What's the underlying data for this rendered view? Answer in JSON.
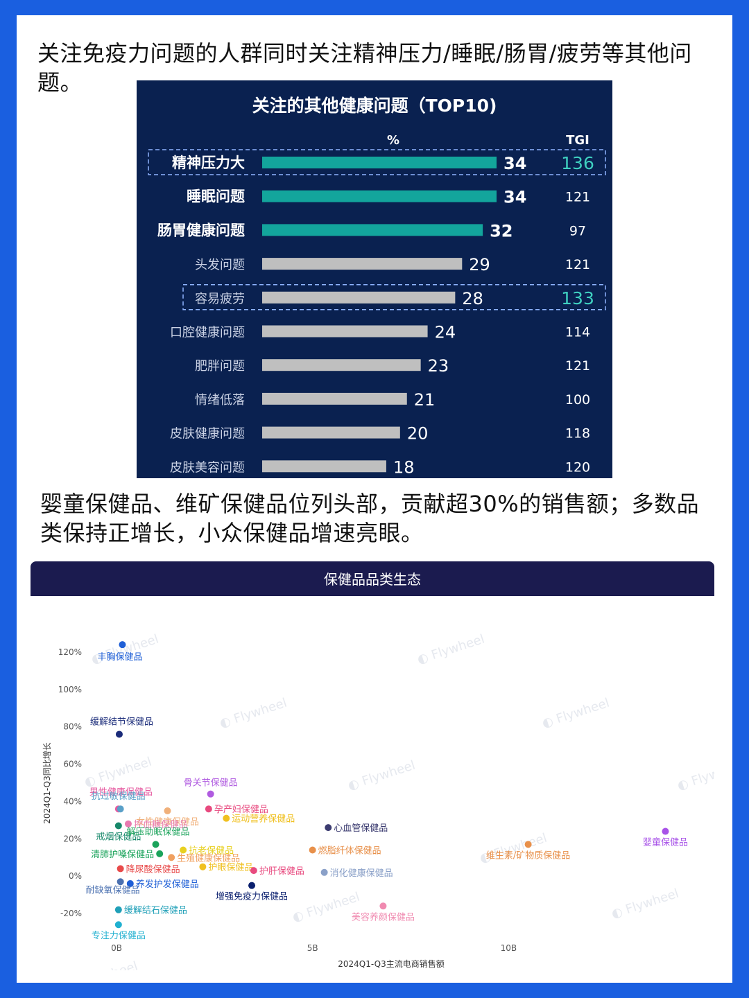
{
  "colors": {
    "frame": "#1a5fe0",
    "bar_panel_bg": "#0a2150",
    "bar_highlight": "#13a59c",
    "bar_normal": "#bfbfbf",
    "scatter_header": "#1b1b4f"
  },
  "intro_text": "关注免疫力问题的人群同时关注精神压力/睡眠/肠胃/疲劳等其他问题。",
  "intro_text_2": "婴童保健品、维矿保健品位列头部，贡献超30%的销售额；多数品类保持正增长，小众保健品增速亮眼。",
  "chart_data": [
    {
      "type": "bar",
      "orientation": "horizontal",
      "title": "关注的其他健康问题（TOP10)",
      "value_header": "%",
      "tgi_header": "TGI",
      "categories": [
        "精神压力大",
        "睡眠问题",
        "肠胃健康问题",
        "头发问题",
        "容易疲劳",
        "口腔健康问题",
        "肥胖问题",
        "情绪低落",
        "皮肤健康问题",
        "皮肤美容问题"
      ],
      "values": [
        34,
        34,
        32,
        29,
        28,
        24,
        23,
        21,
        20,
        18
      ],
      "tgi": [
        136,
        121,
        97,
        121,
        133,
        114,
        121,
        100,
        118,
        120
      ],
      "highlight_bars": [
        "精神压力大",
        "睡眠问题",
        "肠胃健康问题"
      ],
      "boxed_rows": [
        "精神压力大",
        "容易疲劳"
      ],
      "xlim": [
        0,
        34
      ]
    },
    {
      "type": "scatter",
      "title": "保健品品类生态",
      "xlabel": "2024Q1-Q3主流电商销售额",
      "ylabel": "2024Q1-Q3同比增长",
      "xlim": [
        0,
        15
      ],
      "ylim": [
        -0.3,
        1.3
      ],
      "x_ticks": [
        {
          "v": 0,
          "label": "0B"
        },
        {
          "v": 5,
          "label": "5B"
        },
        {
          "v": 10,
          "label": "10B"
        }
      ],
      "y_ticks": [
        {
          "v": 1.2,
          "label": "120%"
        },
        {
          "v": 1.0,
          "label": "100%"
        },
        {
          "v": 0.8,
          "label": "80%"
        },
        {
          "v": 0.6,
          "label": "60%"
        },
        {
          "v": 0.4,
          "label": "40%"
        },
        {
          "v": 0.2,
          "label": "20%"
        },
        {
          "v": 0.0,
          "label": "0%"
        },
        {
          "v": -0.2,
          "label": "-20%"
        }
      ],
      "watermark": "Flywheel",
      "points": [
        {
          "name": "丰胸保健品",
          "x": 0.15,
          "y": 1.24,
          "color": "#1f5fd6",
          "label_pos": "below-right"
        },
        {
          "name": "缓解结节保健品",
          "x": 0.07,
          "y": 0.76,
          "color": "#1b2c7a",
          "label_pos": "above-right"
        },
        {
          "name": "骨关节保健品",
          "x": 2.4,
          "y": 0.44,
          "color": "#b05be0",
          "label_pos": "above-center"
        },
        {
          "name": "男性健康保健品",
          "x": 0.05,
          "y": 0.36,
          "color": "#e65aa0",
          "label_pos": "above-left"
        },
        {
          "name": "抗过敏保健品",
          "x": 0.1,
          "y": 0.36,
          "color": "#5aa0c8",
          "label_pos": "above-right"
        },
        {
          "name": "孕产妇保健品",
          "x": 2.35,
          "y": 0.36,
          "color": "#e84a7f",
          "label_pos": "right"
        },
        {
          "name": "女性健康保健品",
          "x": 1.3,
          "y": 0.35,
          "color": "#f0b07a",
          "label_pos": "below"
        },
        {
          "name": "运动营养保健品",
          "x": 2.8,
          "y": 0.31,
          "color": "#f0c020",
          "label_pos": "right"
        },
        {
          "name": "心血管保健品",
          "x": 5.4,
          "y": 0.26,
          "color": "#3b3b70",
          "label_pos": "right"
        },
        {
          "name": "婴童保健品",
          "x": 14.0,
          "y": 0.24,
          "color": "#a852e8",
          "label_pos": "below"
        },
        {
          "name": "控血糖保健品",
          "x": 0.3,
          "y": 0.28,
          "color": "#e87ab0",
          "label_pos": "right"
        },
        {
          "name": "戒烟保健品",
          "x": 0.05,
          "y": 0.27,
          "color": "#17886a",
          "label_pos": "below"
        },
        {
          "name": "解压助眠保健品",
          "x": 1.0,
          "y": 0.17,
          "color": "#1aa35a",
          "label_pos": "above-right"
        },
        {
          "name": "维生素/矿物质保健品",
          "x": 10.5,
          "y": 0.17,
          "color": "#e8904a",
          "label_pos": "below"
        },
        {
          "name": "燃脂纤体保健品",
          "x": 5.0,
          "y": 0.14,
          "color": "#e8904a",
          "label_pos": "right"
        },
        {
          "name": "抗老保健品",
          "x": 1.7,
          "y": 0.14,
          "color": "#e8d020",
          "label_pos": "right"
        },
        {
          "name": "清肺护嗓保健品",
          "x": 1.1,
          "y": 0.12,
          "color": "#1aa35a",
          "label_pos": "left"
        },
        {
          "name": "生殖健康保健品",
          "x": 1.4,
          "y": 0.1,
          "color": "#f0a060",
          "label_pos": "right"
        },
        {
          "name": "降尿酸保健品",
          "x": 0.1,
          "y": 0.04,
          "color": "#e84a4a",
          "label_pos": "right"
        },
        {
          "name": "护眼保健品",
          "x": 2.2,
          "y": 0.05,
          "color": "#f0c020",
          "label_pos": "right"
        },
        {
          "name": "护肝保健品",
          "x": 3.5,
          "y": 0.03,
          "color": "#e84a7f",
          "label_pos": "right"
        },
        {
          "name": "消化健康保健品",
          "x": 5.3,
          "y": 0.02,
          "color": "#8aa0c8",
          "label_pos": "right"
        },
        {
          "name": "养发护发保健品",
          "x": 0.35,
          "y": -0.04,
          "color": "#1f5fd6",
          "label_pos": "right"
        },
        {
          "name": "耐缺氧保健品",
          "x": 0.1,
          "y": -0.03,
          "color": "#4a70b0",
          "label_pos": "below-left"
        },
        {
          "name": "增强免疫力保健品",
          "x": 3.45,
          "y": -0.05,
          "color": "#0a1f6e",
          "label_pos": "below"
        },
        {
          "name": "缓解结石保健品",
          "x": 0.05,
          "y": -0.18,
          "color": "#20a0b8",
          "label_pos": "right"
        },
        {
          "name": "美容养颜保健品",
          "x": 6.8,
          "y": -0.16,
          "color": "#f08ab0",
          "label_pos": "below"
        },
        {
          "name": "专注力保健品",
          "x": 0.05,
          "y": -0.26,
          "color": "#20b0d0",
          "label_pos": "below"
        }
      ]
    }
  ]
}
